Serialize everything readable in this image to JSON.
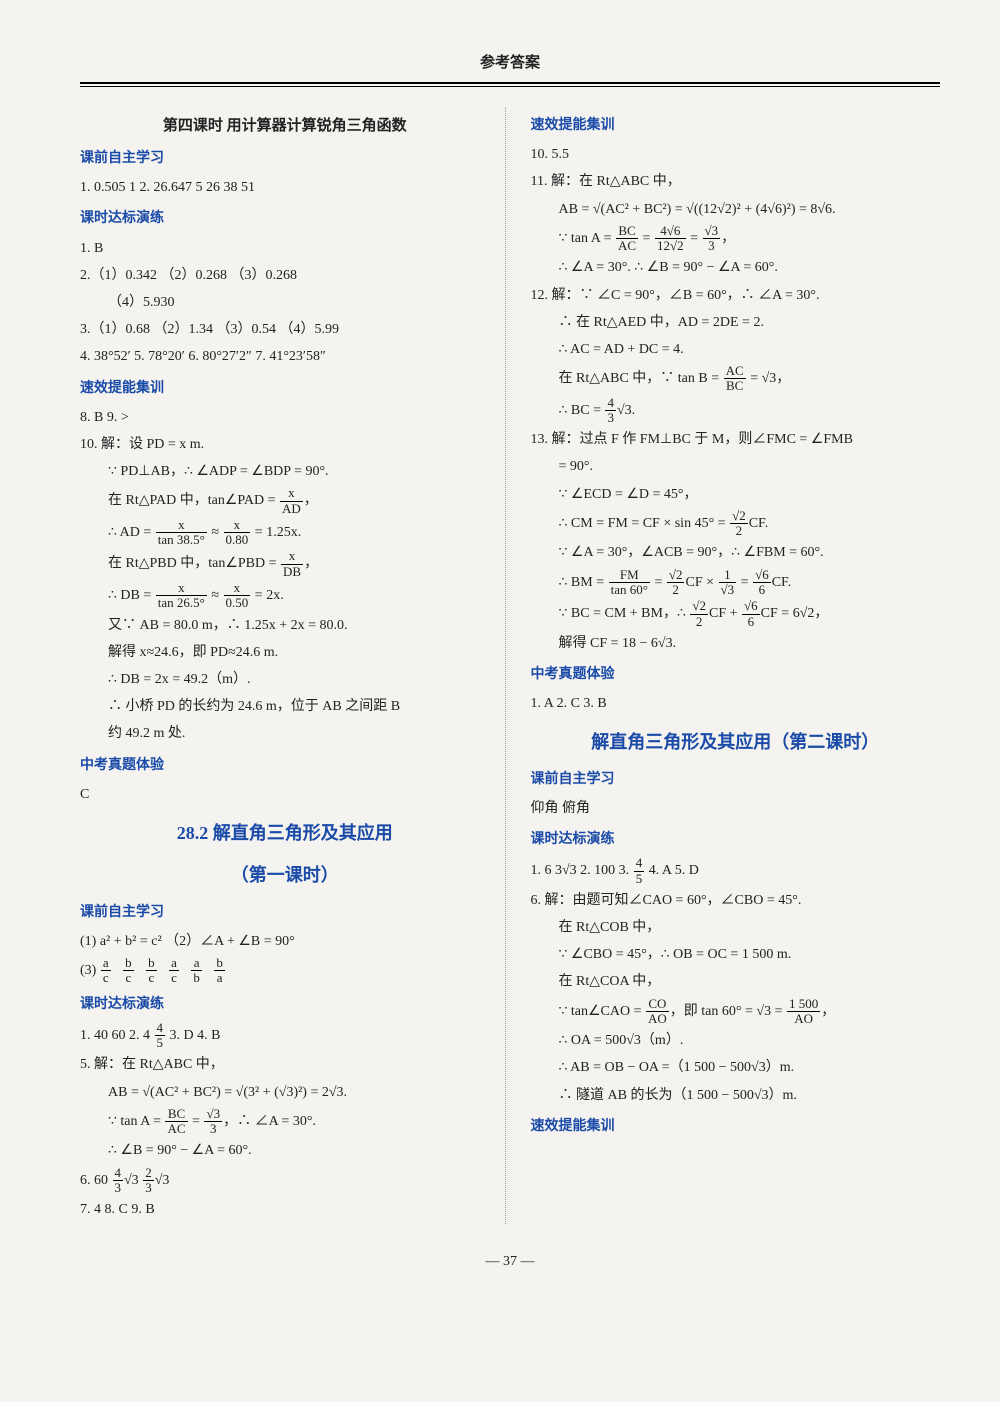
{
  "header": "参考答案",
  "page_number": "— 37 —",
  "left": {
    "title1": "第四课时 用计算器计算锐角三角函数",
    "s1": "课前自主学习",
    "l1": "1. 0.505 1  2. 26.647 5  26  38  51",
    "s2": "课时达标演练",
    "l2": "1. B",
    "l3": "2.（1）0.342 （2）0.268 （3）0.268",
    "l3b": "（4）5.930",
    "l4": "3.（1）0.68 （2）1.34 （3）0.54 （4）5.99",
    "l5": "4. 38°52′  5. 78°20′  6. 80°27′2″  7. 41°23′58″",
    "s3": "速效提能集训",
    "l6": "8. B  9. >",
    "l7": "10. 解：设 PD = x m.",
    "l8": "∵ PD⊥AB，∴ ∠ADP = ∠BDP = 90°.",
    "l9a": "在 Rt△PAD 中，tan∠PAD = ",
    "l9f_n": "x",
    "l9f_d": "AD",
    "l9b": "，",
    "l10a": "∴ AD = ",
    "l10f1_n": "x",
    "l10f1_d": "tan 38.5°",
    "l10b": " ≈ ",
    "l10f2_n": "x",
    "l10f2_d": "0.80",
    "l10c": " = 1.25x.",
    "l11a": "在 Rt△PBD 中，tan∠PBD = ",
    "l11f_n": "x",
    "l11f_d": "DB",
    "l11b": "，",
    "l12a": "∴ DB = ",
    "l12f1_n": "x",
    "l12f1_d": "tan 26.5°",
    "l12b": " ≈ ",
    "l12f2_n": "x",
    "l12f2_d": "0.50",
    "l12c": " = 2x.",
    "l13": "又∵ AB = 80.0 m，∴ 1.25x + 2x = 80.0.",
    "l14": "解得 x≈24.6，即 PD≈24.6 m.",
    "l15": "∴ DB = 2x = 49.2（m）.",
    "l16": "∴ 小桥 PD 的长约为 24.6 m，位于 AB 之间距 B",
    "l17": "约 49.2 m 处.",
    "s4": "中考真题体验",
    "l18": "C",
    "title2a": "28.2 解直角三角形及其应用",
    "title2b": "（第一课时）",
    "s5": "课前自主学习",
    "l19": "(1) a² + b² = c² （2）∠A + ∠B = 90°",
    "l20a": "(3) ",
    "fr1_n": "a",
    "fr1_d": "c",
    "fr2_n": "b",
    "fr2_d": "c",
    "fr3_n": "b",
    "fr3_d": "c",
    "fr4_n": "a",
    "fr4_d": "c",
    "fr5_n": "a",
    "fr5_d": "b",
    "fr6_n": "b",
    "fr6_d": "a",
    "s6": "课时达标演练",
    "l21a": "1. 40  60  2. 4  ",
    "l21f_n": "4",
    "l21f_d": "5",
    "l21b": "  3. D  4. B",
    "l22": "5. 解：在 Rt△ABC 中，",
    "l23": "AB = √(AC² + BC²) = √(3² + (√3)²) = 2√3.",
    "l24a": "∵ tan A = ",
    "l24f1_n": "BC",
    "l24f1_d": "AC",
    "l24b": " = ",
    "l24f2_n": "√3",
    "l24f2_d": "3",
    "l24c": "，∴ ∠A = 30°.",
    "l25": "∴ ∠B = 90° − ∠A = 60°.",
    "l26a": "6. 60  ",
    "l26f1_n": "4",
    "l26f1_d": "3",
    "l26m": "√3  ",
    "l26f2_n": "2",
    "l26f2_d": "3",
    "l26b": "√3",
    "l27": "7. 4  8. C  9. B"
  },
  "right": {
    "s1": "速效提能集训",
    "l1": "10. 5.5",
    "l2": "11. 解：在 Rt△ABC 中，",
    "l3": "AB = √(AC² + BC²) = √((12√2)² + (4√6)²) = 8√6.",
    "l4a": "∵ tan A = ",
    "l4f1_n": "BC",
    "l4f1_d": "AC",
    "l4b": " = ",
    "l4f2_n": "4√6",
    "l4f2_d": "12√2",
    "l4c": " = ",
    "l4f3_n": "√3",
    "l4f3_d": "3",
    "l4d": "，",
    "l5": "∴ ∠A = 30°. ∴ ∠B = 90° − ∠A = 60°.",
    "l6": "12. 解：∵ ∠C = 90°，∠B = 60°，∴ ∠A = 30°.",
    "l7": "∴ 在 Rt△AED 中，AD = 2DE = 2.",
    "l8": "∴ AC = AD + DC = 4.",
    "l9a": "在 Rt△ABC 中，∵ tan B = ",
    "l9f_n": "AC",
    "l9f_d": "BC",
    "l9b": " = √3，",
    "l10a": "∴ BC = ",
    "l10f_n": "4",
    "l10f_d": "3",
    "l10b": "√3.",
    "l11": "13. 解：过点 F 作 FM⊥BC 于 M，则∠FMC = ∠FMB",
    "l12": "= 90°.",
    "l13": "∵ ∠ECD = ∠D = 45°，",
    "l14a": "∴ CM = FM = CF × sin 45° = ",
    "l14f_n": "√2",
    "l14f_d": "2",
    "l14b": "CF.",
    "l15": "∵ ∠A = 30°，∠ACB = 90°，∴ ∠FBM = 60°.",
    "l16a": "∴ BM = ",
    "l16f1_n": "FM",
    "l16f1_d": "tan 60°",
    "l16b": " = ",
    "l16f2_n": "√2",
    "l16f2_d": "2",
    "l16c": "CF × ",
    "l16f3_n": "1",
    "l16f3_d": "√3",
    "l16d": " = ",
    "l16f4_n": "√6",
    "l16f4_d": "6",
    "l16e": "CF.",
    "l17a": "∵ BC = CM + BM，∴ ",
    "l17f1_n": "√2",
    "l17f1_d": "2",
    "l17b": "CF + ",
    "l17f2_n": "√6",
    "l17f2_d": "6",
    "l17c": "CF = 6√2，",
    "l18": "解得 CF = 18 − 6√3.",
    "s2": "中考真题体验",
    "l19": "1. A  2. C  3. B",
    "title1": "解直角三角形及其应用（第二课时）",
    "s3": "课前自主学习",
    "l20": "仰角 俯角",
    "s4": "课时达标演练",
    "l21a": "1. 6  3√3  2. 100  3. ",
    "l21f_n": "4",
    "l21f_d": "5",
    "l21b": "  4. A  5. D",
    "l22": "6. 解：由题可知∠CAO = 60°，∠CBO = 45°.",
    "l23": "在 Rt△COB 中，",
    "l24": "∵ ∠CBO = 45°，∴ OB = OC = 1 500 m.",
    "l25": "在 Rt△COA 中，",
    "l26a": "∵ tan∠CAO = ",
    "l26f1_n": "CO",
    "l26f1_d": "AO",
    "l26b": "，即 tan 60° = √3 = ",
    "l26f2_n": "1 500",
    "l26f2_d": "AO",
    "l26c": "，",
    "l27": "∴ OA = 500√3（m）.",
    "l28": "∴ AB = OB − OA =（1 500 − 500√3）m.",
    "l29": "∴ 隧道 AB 的长为（1 500 − 500√3）m.",
    "s5": "速效提能集训"
  }
}
